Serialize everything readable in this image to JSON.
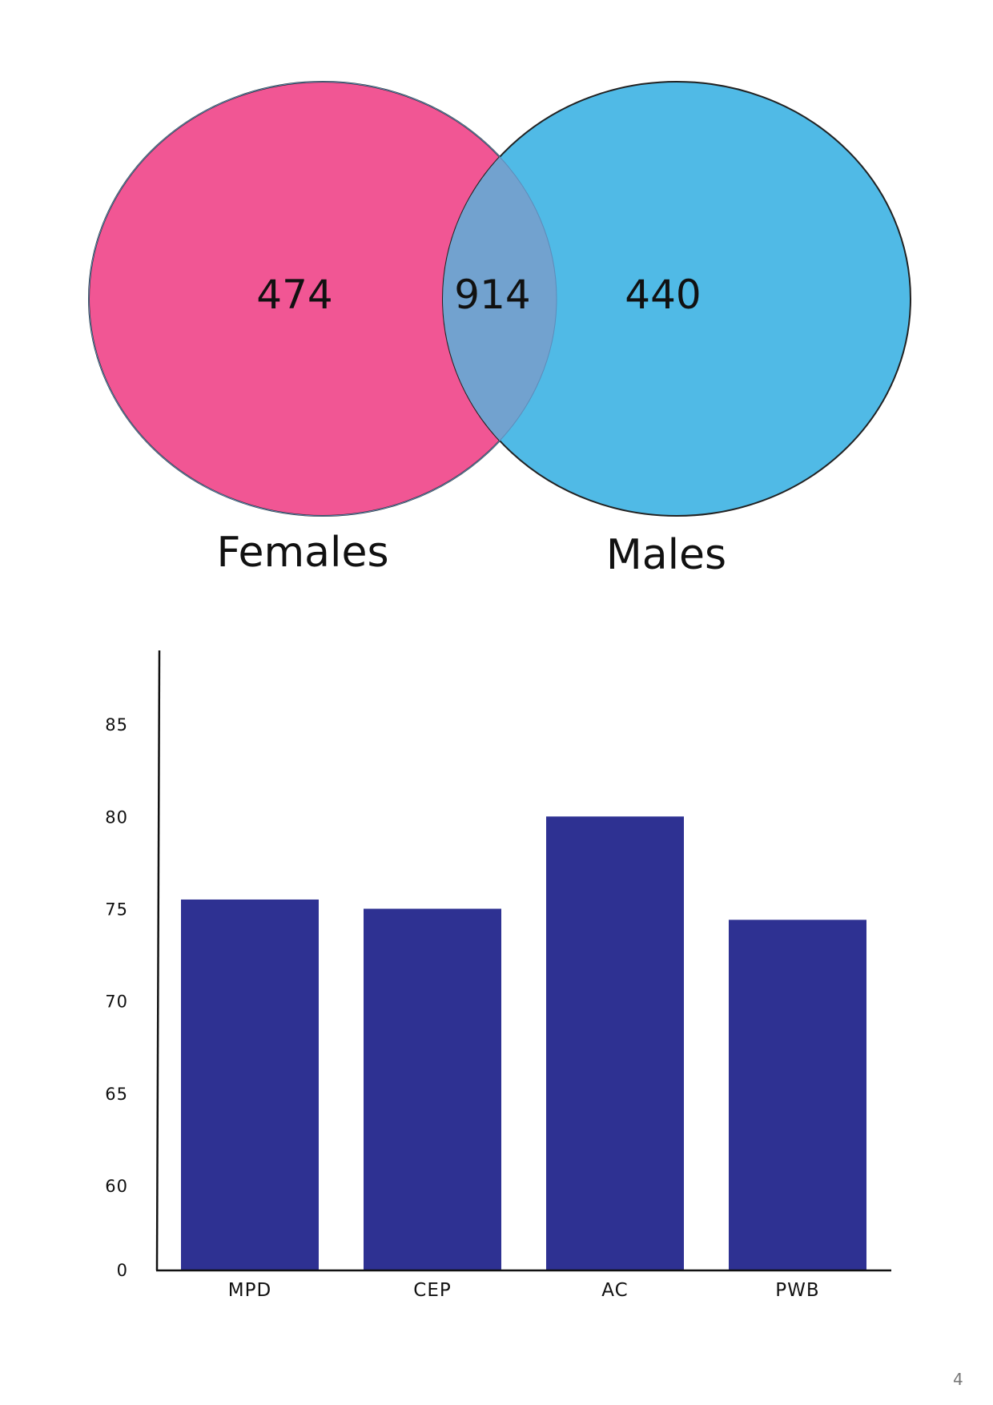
{
  "page": {
    "number": "4"
  },
  "chart_data": [
    {
      "type": "venn",
      "sets": [
        {
          "label": "Females",
          "only_count": "474",
          "color": "#F15694"
        },
        {
          "label": "Males",
          "only_count": "440",
          "color": "#50BAE6"
        }
      ],
      "intersection": {
        "count": "914",
        "color": "#72A2CF"
      }
    },
    {
      "type": "bar",
      "categories": [
        "MPD",
        "CEP",
        "AC",
        "PWB"
      ],
      "values": [
        75.5,
        75,
        80,
        74.4
      ],
      "y_ticks": [
        "0",
        "60",
        "65",
        "70",
        "75",
        "80",
        "85"
      ],
      "y_tick_values": [
        0,
        60,
        65,
        70,
        75,
        80,
        85
      ],
      "ylim": [
        0,
        89
      ],
      "axis_break": "scale jumps from 0 to 60",
      "bar_color": "#2E3192",
      "title": "",
      "xlabel": "",
      "ylabel": "",
      "grid": false,
      "legend": false
    }
  ]
}
